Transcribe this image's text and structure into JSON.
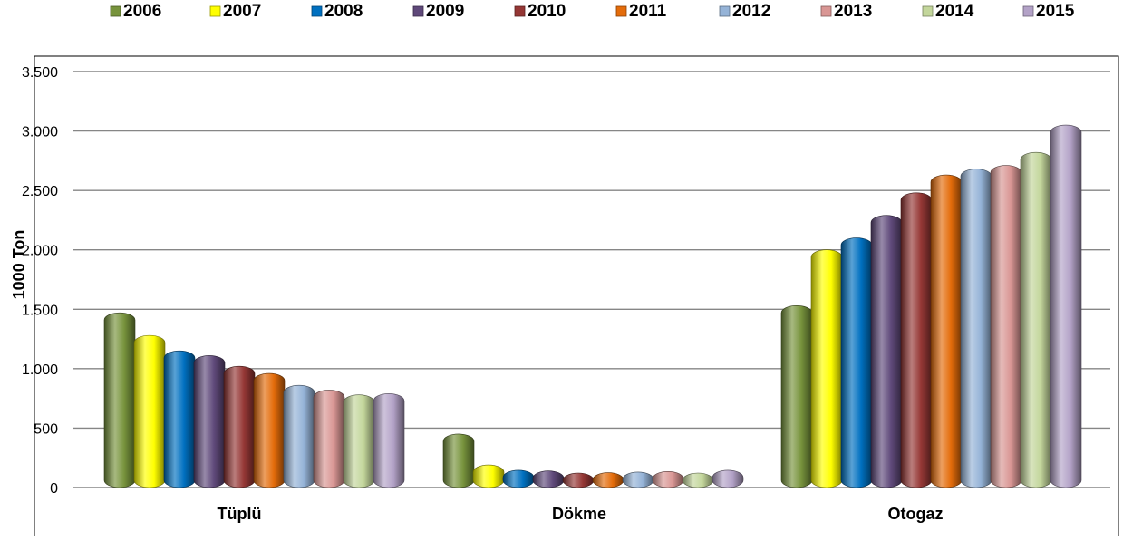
{
  "chart_data": {
    "type": "bar",
    "categories": [
      "Tüplü",
      "Dökme",
      "Otogaz"
    ],
    "series": [
      {
        "name": "2006",
        "color": "#77933C",
        "values": [
          1470,
          450,
          1530
        ]
      },
      {
        "name": "2007",
        "color": "#FFFF00",
        "values": [
          1280,
          190,
          2000
        ]
      },
      {
        "name": "2008",
        "color": "#0070C0",
        "values": [
          1150,
          145,
          2100
        ]
      },
      {
        "name": "2009",
        "color": "#5F497A",
        "values": [
          1110,
          140,
          2290
        ]
      },
      {
        "name": "2010",
        "color": "#953735",
        "values": [
          1020,
          110,
          2480
        ]
      },
      {
        "name": "2011",
        "color": "#E46C0A",
        "values": [
          960,
          125,
          2630
        ]
      },
      {
        "name": "2012",
        "color": "#95B3D7",
        "values": [
          860,
          130,
          2680
        ]
      },
      {
        "name": "2013",
        "color": "#D99694",
        "values": [
          820,
          135,
          2710
        ]
      },
      {
        "name": "2014",
        "color": "#C3D69B",
        "values": [
          780,
          115,
          2820
        ]
      },
      {
        "name": "2015",
        "color": "#B3A2C7",
        "values": [
          790,
          145,
          3050
        ]
      }
    ],
    "title": "",
    "xlabel": "",
    "ylabel": "1000 Ton",
    "ylim": [
      0,
      3500
    ],
    "yticks": [
      0,
      500,
      1000,
      1500,
      2000,
      2500,
      3000,
      3500
    ],
    "ytick_labels": [
      "0",
      "500",
      "1.000",
      "1.500",
      "2.000",
      "2.500",
      "3.000",
      "3.500"
    ],
    "grid": true,
    "legend_position": "top"
  }
}
